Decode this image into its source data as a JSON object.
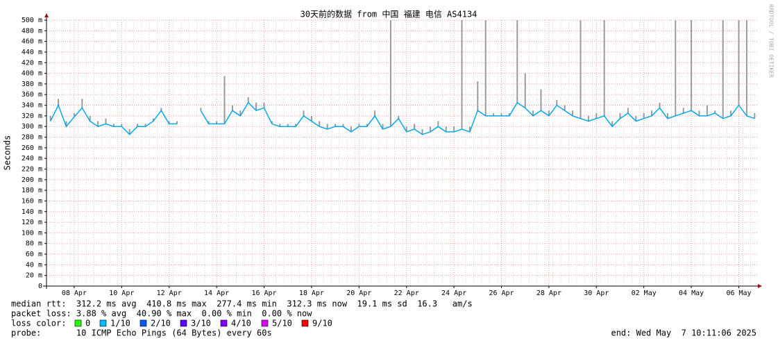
{
  "chart_data": {
    "type": "line",
    "title": "30天前的数据 from 中国 福建 电信 AS4134",
    "y_label": "Seconds",
    "watermark": "RRDTOOL / TOBI OETIKER",
    "color": "#00a8ee",
    "smoke_color": "#9a9a9a",
    "grid": true,
    "ylim": [
      0,
      500
    ],
    "yticks": [
      0,
      {
        "value": 20,
        "label": "20 m"
      },
      {
        "value": 40,
        "label": "40 m"
      },
      {
        "value": 60,
        "label": "60 m"
      },
      {
        "value": 80,
        "label": "80 m"
      },
      {
        "value": 100,
        "label": "100 m"
      },
      {
        "value": 120,
        "label": "120 m"
      },
      {
        "value": 140,
        "label": "140 m"
      },
      {
        "value": 160,
        "label": "160 m"
      },
      {
        "value": 180,
        "label": "180 m"
      },
      {
        "value": 200,
        "label": "200 m"
      },
      {
        "value": 220,
        "label": "220 m"
      },
      {
        "value": 240,
        "label": "240 m"
      },
      {
        "value": 260,
        "label": "260 m"
      },
      {
        "value": 280,
        "label": "280 m"
      },
      {
        "value": 300,
        "label": "300 m"
      },
      {
        "value": 320,
        "label": "320 m"
      },
      {
        "value": 340,
        "label": "340 m"
      },
      {
        "value": 360,
        "label": "360 m"
      },
      {
        "value": 380,
        "label": "380 m"
      },
      {
        "value": 400,
        "label": "400 m"
      },
      {
        "value": 420,
        "label": "420 m"
      },
      {
        "value": 440,
        "label": "440 m"
      },
      {
        "value": 460,
        "label": "460 m"
      },
      {
        "value": 480,
        "label": "480 m"
      },
      {
        "value": 500,
        "label": "500 m"
      }
    ],
    "categories": [
      null,
      null,
      null,
      "08 Apr",
      null,
      null,
      null,
      null,
      null,
      "10 Apr",
      null,
      null,
      null,
      null,
      null,
      "12 Apr",
      null,
      null,
      null,
      null,
      null,
      "14 Apr",
      null,
      null,
      null,
      null,
      null,
      "16 Apr",
      null,
      null,
      null,
      null,
      null,
      "18 Apr",
      null,
      null,
      null,
      null,
      null,
      "20 Apr",
      null,
      null,
      null,
      null,
      null,
      "22 Apr",
      null,
      null,
      null,
      null,
      null,
      "24 Apr",
      null,
      null,
      null,
      null,
      null,
      "26 Apr",
      null,
      null,
      null,
      null,
      null,
      "28 Apr",
      null,
      null,
      null,
      null,
      null,
      "30 Apr",
      null,
      null,
      null,
      null,
      null,
      "02 May",
      null,
      null,
      null,
      null,
      null,
      "04 May",
      null,
      null,
      null,
      null,
      null,
      "06 May",
      null,
      null
    ],
    "values": [
      310,
      340,
      300,
      318,
      335,
      310,
      300,
      305,
      300,
      300,
      285,
      300,
      300,
      310,
      330,
      305,
      305,
      null,
      null,
      330,
      305,
      305,
      305,
      330,
      320,
      345,
      330,
      335,
      305,
      300,
      300,
      300,
      320,
      310,
      300,
      295,
      300,
      300,
      290,
      300,
      300,
      320,
      295,
      300,
      315,
      290,
      295,
      285,
      290,
      300,
      290,
      290,
      295,
      290,
      330,
      320,
      320,
      320,
      320,
      345,
      335,
      320,
      330,
      320,
      340,
      330,
      320,
      315,
      310,
      315,
      320,
      300,
      315,
      325,
      310,
      315,
      320,
      335,
      315,
      320,
      325,
      330,
      320,
      320,
      325,
      315,
      320,
      340,
      320,
      315
    ],
    "max_values": [
      320,
      352,
      310,
      325,
      352,
      320,
      310,
      315,
      305,
      305,
      295,
      305,
      305,
      315,
      335,
      310,
      310,
      null,
      null,
      335,
      310,
      310,
      395,
      340,
      330,
      355,
      345,
      345,
      310,
      305,
      305,
      305,
      330,
      320,
      310,
      305,
      305,
      305,
      300,
      305,
      305,
      330,
      305,
      500,
      320,
      300,
      305,
      295,
      300,
      310,
      300,
      300,
      500,
      300,
      385,
      500,
      325,
      325,
      325,
      500,
      400,
      330,
      370,
      330,
      350,
      340,
      330,
      500,
      320,
      325,
      500,
      310,
      325,
      335,
      320,
      325,
      330,
      345,
      325,
      500,
      335,
      500,
      330,
      340,
      330,
      500,
      330,
      500,
      500,
      325
    ],
    "stats": [
      "median rtt:  312.2 ms avg  410.8 ms max  277.4 ms min  312.3 ms now  19.1 ms sd  16.3   am/s",
      "packet loss: 3.88 % avg  40.90 % max  0.00 % min  0.00 % now"
    ],
    "loss_title": "loss color:",
    "loss_colors": [
      {
        "label": "0",
        "color": "#26ff00"
      },
      {
        "label": "1/10",
        "color": "#00b8ff"
      },
      {
        "label": "2/10",
        "color": "#0059ff"
      },
      {
        "label": "3/10",
        "color": "#5e00ff"
      },
      {
        "label": "4/10",
        "color": "#7e00ff"
      },
      {
        "label": "5/10",
        "color": "#dd00ff"
      },
      {
        "label": "9/10",
        "color": "#ff0000"
      }
    ],
    "probe": "probe:       10 ICMP Echo Pings (64 Bytes) every 60s",
    "end": "end: Wed May  7 10:11:06 2025"
  }
}
